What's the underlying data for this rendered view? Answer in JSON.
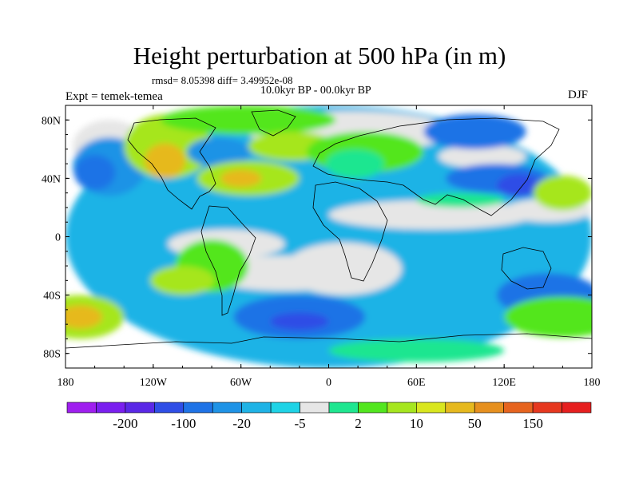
{
  "title": "Height perturbation at 500 hPa (in m)",
  "stats": "rmsd= 8.05398  diff= 3.49952e-08",
  "experiment": "Expt = temek-temea",
  "period": "10.0kyr BP - 00.0kyr BP",
  "season": "DJF",
  "axes": {
    "lat_ticks": [
      {
        "label": "80N",
        "value": 80
      },
      {
        "label": "40N",
        "value": 40
      },
      {
        "label": "0",
        "value": 0
      },
      {
        "label": "40S",
        "value": -40
      },
      {
        "label": "80S",
        "value": -80
      }
    ],
    "lon_ticks": [
      {
        "label": "180",
        "value": -180
      },
      {
        "label": "120W",
        "value": -120
      },
      {
        "label": "60W",
        "value": -60
      },
      {
        "label": "0",
        "value": 0
      },
      {
        "label": "60E",
        "value": 60
      },
      {
        "label": "120E",
        "value": 120
      },
      {
        "label": "180",
        "value": 180
      }
    ],
    "lat_range": [
      -90,
      90
    ],
    "lon_range": [
      -180,
      180
    ]
  },
  "colorbar": {
    "colors": [
      "#9f1fef",
      "#7a1fef",
      "#5a28e6",
      "#2f4ee6",
      "#1f73e6",
      "#1f93e6",
      "#1fb3e6",
      "#1fd3e6",
      "#e6e6e6",
      "#1fe690",
      "#52e61f",
      "#a6e61f",
      "#d9e61f",
      "#e6b91f",
      "#e6901f",
      "#e6641f",
      "#e6381f",
      "#e61f1f"
    ],
    "labels": [
      {
        "text": "-200",
        "after_index": 1
      },
      {
        "text": "-100",
        "after_index": 3
      },
      {
        "text": "-20",
        "after_index": 5
      },
      {
        "text": "-5",
        "after_index": 7
      },
      {
        "text": "2",
        "after_index": 9
      },
      {
        "text": "10",
        "after_index": 11
      },
      {
        "text": "50",
        "after_index": 13
      },
      {
        "text": "150",
        "after_index": 15
      }
    ]
  },
  "field_blobs": [
    {
      "lon": 0,
      "lat": 0,
      "rx": 180,
      "ry": 90,
      "color": "#1fb3e6"
    },
    {
      "lon": -30,
      "lat": -25,
      "rx": 60,
      "ry": 12,
      "color": "#e6e6e6"
    },
    {
      "lon": 10,
      "lat": -22,
      "rx": 40,
      "ry": 18,
      "color": "#e6e6e6"
    },
    {
      "lon": -70,
      "lat": -5,
      "rx": 40,
      "ry": 10,
      "color": "#e6e6e6"
    },
    {
      "lon": 70,
      "lat": 15,
      "rx": 70,
      "ry": 10,
      "color": "#e6e6e6"
    },
    {
      "lon": 150,
      "lat": 18,
      "rx": 30,
      "ry": 8,
      "color": "#e6e6e6"
    },
    {
      "lon": -150,
      "lat": 62,
      "rx": 25,
      "ry": 18,
      "color": "#e6e6e6"
    },
    {
      "lon": 15,
      "lat": 72,
      "rx": 70,
      "ry": 14,
      "color": "#e6e6e6"
    },
    {
      "lon": 105,
      "lat": 55,
      "rx": 30,
      "ry": 8,
      "color": "#e6e6e6"
    },
    {
      "lon": -150,
      "lat": 48,
      "rx": 25,
      "ry": 20,
      "color": "#1f93e6"
    },
    {
      "lon": -160,
      "lat": 44,
      "rx": 14,
      "ry": 12,
      "color": "#1f73e6"
    },
    {
      "lon": -110,
      "lat": 62,
      "rx": 30,
      "ry": 22,
      "color": "#a6e61f"
    },
    {
      "lon": -112,
      "lat": 52,
      "rx": 14,
      "ry": 12,
      "color": "#e6b91f"
    },
    {
      "lon": -75,
      "lat": 58,
      "rx": 22,
      "ry": 10,
      "color": "#1f93e6"
    },
    {
      "lon": -55,
      "lat": 80,
      "rx": 60,
      "ry": 10,
      "color": "#52e61f"
    },
    {
      "lon": -55,
      "lat": 40,
      "rx": 35,
      "ry": 12,
      "color": "#a6e61f"
    },
    {
      "lon": -60,
      "lat": 40,
      "rx": 14,
      "ry": 6,
      "color": "#e6b91f"
    },
    {
      "lon": -25,
      "lat": 62,
      "rx": 30,
      "ry": 10,
      "color": "#a6e61f"
    },
    {
      "lon": 25,
      "lat": 58,
      "rx": 40,
      "ry": 14,
      "color": "#52e61f"
    },
    {
      "lon": 18,
      "lat": 50,
      "rx": 20,
      "ry": 10,
      "color": "#1fe690"
    },
    {
      "lon": 100,
      "lat": 72,
      "rx": 35,
      "ry": 12,
      "color": "#1f73e6"
    },
    {
      "lon": 115,
      "lat": 40,
      "rx": 35,
      "ry": 10,
      "color": "#1f73e6"
    },
    {
      "lon": 130,
      "lat": 35,
      "rx": 15,
      "ry": 8,
      "color": "#2f4ee6"
    },
    {
      "lon": 160,
      "lat": 30,
      "rx": 20,
      "ry": 12,
      "color": "#a6e61f"
    },
    {
      "lon": 90,
      "lat": 25,
      "rx": 30,
      "ry": 5,
      "color": "#1fe690"
    },
    {
      "lon": -80,
      "lat": -20,
      "rx": 25,
      "ry": 18,
      "color": "#52e61f"
    },
    {
      "lon": -100,
      "lat": -30,
      "rx": 22,
      "ry": 10,
      "color": "#a6e61f"
    },
    {
      "lon": -170,
      "lat": -55,
      "rx": 30,
      "ry": 15,
      "color": "#a6e61f"
    },
    {
      "lon": -170,
      "lat": -55,
      "rx": 15,
      "ry": 8,
      "color": "#e6b91f"
    },
    {
      "lon": -20,
      "lat": -55,
      "rx": 45,
      "ry": 15,
      "color": "#1f73e6"
    },
    {
      "lon": -20,
      "lat": -58,
      "rx": 20,
      "ry": 6,
      "color": "#2f4ee6"
    },
    {
      "lon": 150,
      "lat": -40,
      "rx": 35,
      "ry": 15,
      "color": "#1f73e6"
    },
    {
      "lon": 160,
      "lat": -55,
      "rx": 40,
      "ry": 14,
      "color": "#52e61f"
    },
    {
      "lon": 60,
      "lat": -78,
      "rx": 60,
      "ry": 8,
      "color": "#1fe690"
    }
  ]
}
